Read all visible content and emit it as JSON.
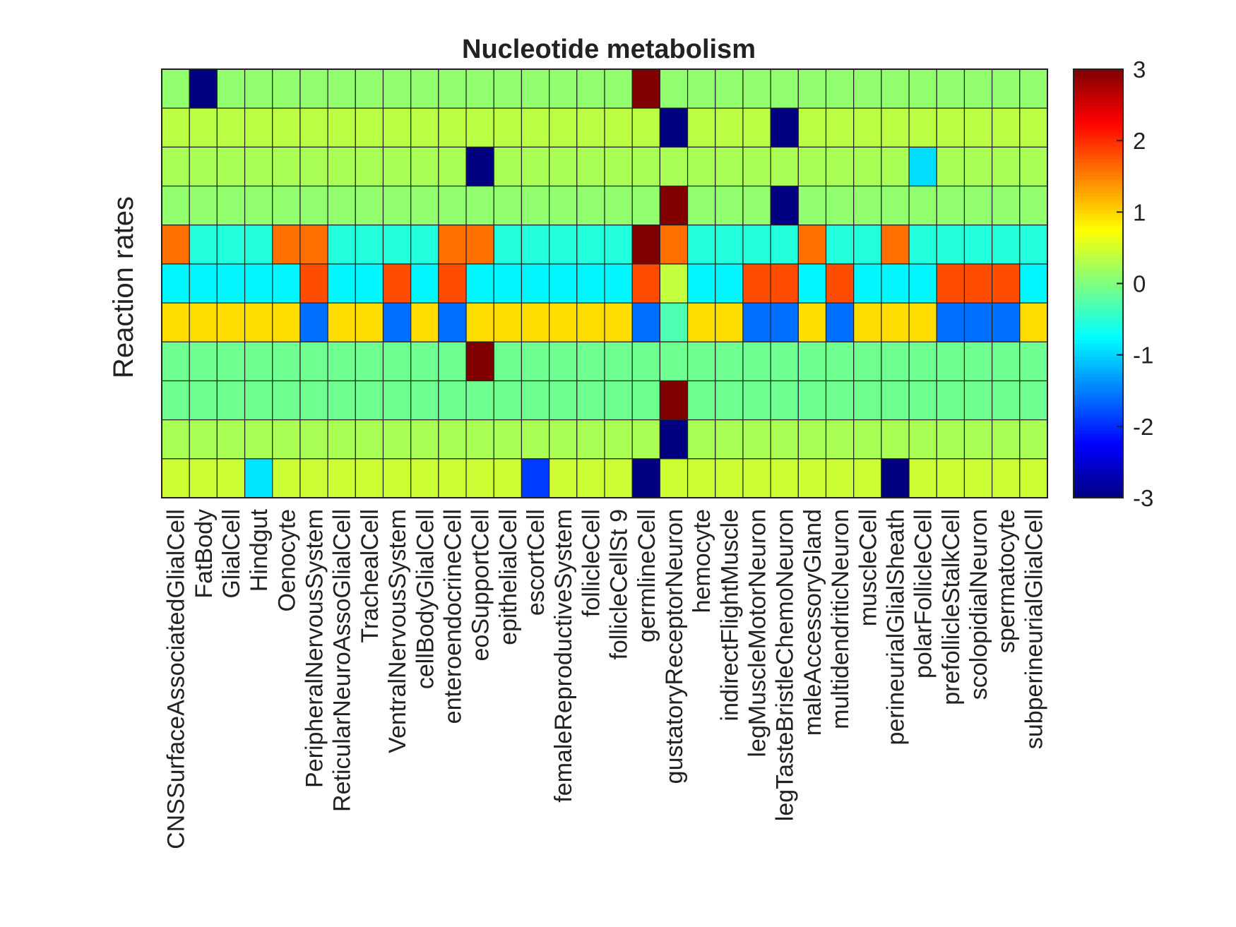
{
  "chart_data": {
    "type": "heatmap",
    "title": "Nucleotide metabolism",
    "ylabel": "Reaction rates",
    "xlabel": "",
    "colormap": "jet",
    "clim": [
      -3,
      3
    ],
    "colorbar_ticks": [
      3,
      2,
      1,
      0,
      -1,
      -2,
      -3
    ],
    "colorbar_tick_labels": [
      "3",
      "2",
      "1",
      "0",
      "-1",
      "-2",
      "-3"
    ],
    "categories": [
      "CNSSurfaceAssociatedGlialCell",
      "FatBody",
      "GlialCell",
      "Hindgut",
      "Oenocyte",
      "PeripheralNervousSystem",
      "ReticularNeuroAssoGlialCell",
      "TrachealCell",
      "VentralNervousSystem",
      "cellBodyGlialCell",
      "enteroendocrineCell",
      "eoSupportCell",
      "epithelialCell",
      "escortCell",
      "femaleReproductiveSystem",
      "follicleCell",
      "follicleCellSt 9",
      "germlineCell",
      "gustatoryReceptorNeuron",
      "hemocyte",
      "indirectFlightMuscle",
      "legMuscleMotorNeuron",
      "legTasteBristleChemoNeuron",
      "maleAccessoryGland",
      "multidendriticNeuron",
      "muscleCell",
      "perineurialGlialSheath",
      "polarFollicleCell",
      "prefollicleStalkCell",
      "scolopidialNeuron",
      "spermatocyte",
      "subperineurialGlialCell"
    ],
    "rows": [
      [
        0.1,
        -3,
        0.1,
        0.1,
        0.1,
        0.1,
        0.1,
        0.1,
        0.1,
        0.1,
        0.1,
        0.1,
        0.1,
        0.1,
        0.1,
        0.1,
        0.1,
        3,
        0.1,
        0.1,
        0.1,
        0.1,
        0.1,
        0.1,
        0.1,
        0.1,
        0.1,
        0.1,
        0.1,
        0.1,
        0.1,
        0.1
      ],
      [
        0.35,
        0.35,
        0.35,
        0.35,
        0.35,
        0.35,
        0.35,
        0.35,
        0.35,
        0.35,
        0.35,
        0.35,
        0.35,
        0.35,
        0.35,
        0.35,
        0.35,
        0.35,
        -3,
        0.35,
        0.35,
        0.35,
        -3,
        0.35,
        0.35,
        0.35,
        0.35,
        0.35,
        0.35,
        0.35,
        0.35,
        0.35
      ],
      [
        0.25,
        0.25,
        0.25,
        0.25,
        0.25,
        0.25,
        0.25,
        0.25,
        0.25,
        0.25,
        0.25,
        -3,
        0.25,
        0.25,
        0.25,
        0.25,
        0.25,
        0.25,
        0.25,
        0.25,
        0.25,
        0.25,
        0.25,
        0.25,
        0.25,
        0.25,
        0.25,
        -0.95,
        0.25,
        0.25,
        0.25,
        0.25
      ],
      [
        0.1,
        0.1,
        0.1,
        0.1,
        0.1,
        0.1,
        0.1,
        0.1,
        0.1,
        0.1,
        0.1,
        0.1,
        0.1,
        0.1,
        0.1,
        0.1,
        0.1,
        0.1,
        3,
        0.1,
        0.1,
        0.1,
        -3,
        0.1,
        0.1,
        0.1,
        0.1,
        0.1,
        0.1,
        0.1,
        0.1,
        0.1
      ],
      [
        1.6,
        -0.55,
        -0.55,
        -0.55,
        1.6,
        1.6,
        -0.55,
        -0.55,
        -0.55,
        -0.55,
        1.6,
        1.6,
        -0.55,
        -0.55,
        -0.55,
        -0.55,
        -0.55,
        3,
        1.6,
        -0.55,
        -0.55,
        -0.55,
        -0.55,
        1.6,
        -0.55,
        -0.55,
        1.6,
        -0.55,
        -0.55,
        -0.55,
        -0.55,
        -0.55
      ],
      [
        -0.8,
        -0.8,
        -0.8,
        -0.8,
        -0.8,
        1.8,
        -0.8,
        -0.8,
        1.8,
        -0.8,
        1.8,
        -0.8,
        -0.8,
        -0.8,
        -0.8,
        -0.8,
        -0.8,
        1.8,
        0.4,
        -0.8,
        -0.8,
        1.8,
        1.8,
        -0.8,
        1.8,
        -0.8,
        -0.8,
        -0.8,
        1.8,
        1.8,
        1.8,
        -0.8
      ],
      [
        0.95,
        0.95,
        0.95,
        0.95,
        0.95,
        -1.6,
        0.95,
        0.95,
        -1.6,
        0.95,
        -1.6,
        0.95,
        0.95,
        0.95,
        0.95,
        0.95,
        0.95,
        -1.6,
        -0.3,
        0.95,
        0.95,
        -1.6,
        -1.6,
        0.95,
        -1.6,
        0.95,
        0.95,
        0.95,
        -1.6,
        -1.6,
        -1.6,
        0.95
      ],
      [
        -0.1,
        -0.1,
        -0.1,
        -0.1,
        -0.1,
        -0.1,
        -0.1,
        -0.1,
        -0.1,
        -0.1,
        -0.1,
        3,
        -0.1,
        -0.1,
        -0.1,
        -0.1,
        -0.1,
        -0.1,
        -0.1,
        -0.1,
        -0.1,
        -0.1,
        -0.1,
        -0.1,
        -0.1,
        -0.1,
        -0.1,
        -0.1,
        -0.1,
        -0.1,
        -0.1,
        -0.1
      ],
      [
        -0.1,
        -0.1,
        -0.1,
        -0.1,
        -0.1,
        -0.1,
        -0.1,
        -0.1,
        -0.1,
        -0.1,
        -0.1,
        -0.1,
        -0.1,
        -0.1,
        -0.1,
        -0.1,
        -0.1,
        -0.1,
        3,
        -0.1,
        -0.1,
        -0.1,
        -0.1,
        -0.1,
        -0.1,
        -0.1,
        -0.1,
        -0.1,
        -0.1,
        -0.1,
        -0.1,
        -0.1
      ],
      [
        0.25,
        0.25,
        0.25,
        0.25,
        0.25,
        0.25,
        0.25,
        0.25,
        0.25,
        0.25,
        0.25,
        0.25,
        0.25,
        0.25,
        0.25,
        0.25,
        0.25,
        0.25,
        -3,
        0.25,
        0.25,
        0.25,
        0.25,
        0.25,
        0.25,
        0.25,
        0.25,
        0.25,
        0.25,
        0.25,
        0.25,
        0.25
      ],
      [
        0.45,
        0.45,
        0.45,
        -0.9,
        0.45,
        0.45,
        0.45,
        0.45,
        0.45,
        0.45,
        0.45,
        0.45,
        0.45,
        -1.9,
        0.45,
        0.45,
        0.45,
        -3,
        0.45,
        0.45,
        0.45,
        0.45,
        0.45,
        0.45,
        0.45,
        0.45,
        -3,
        0.45,
        0.45,
        0.45,
        0.45,
        0.45
      ]
    ]
  }
}
